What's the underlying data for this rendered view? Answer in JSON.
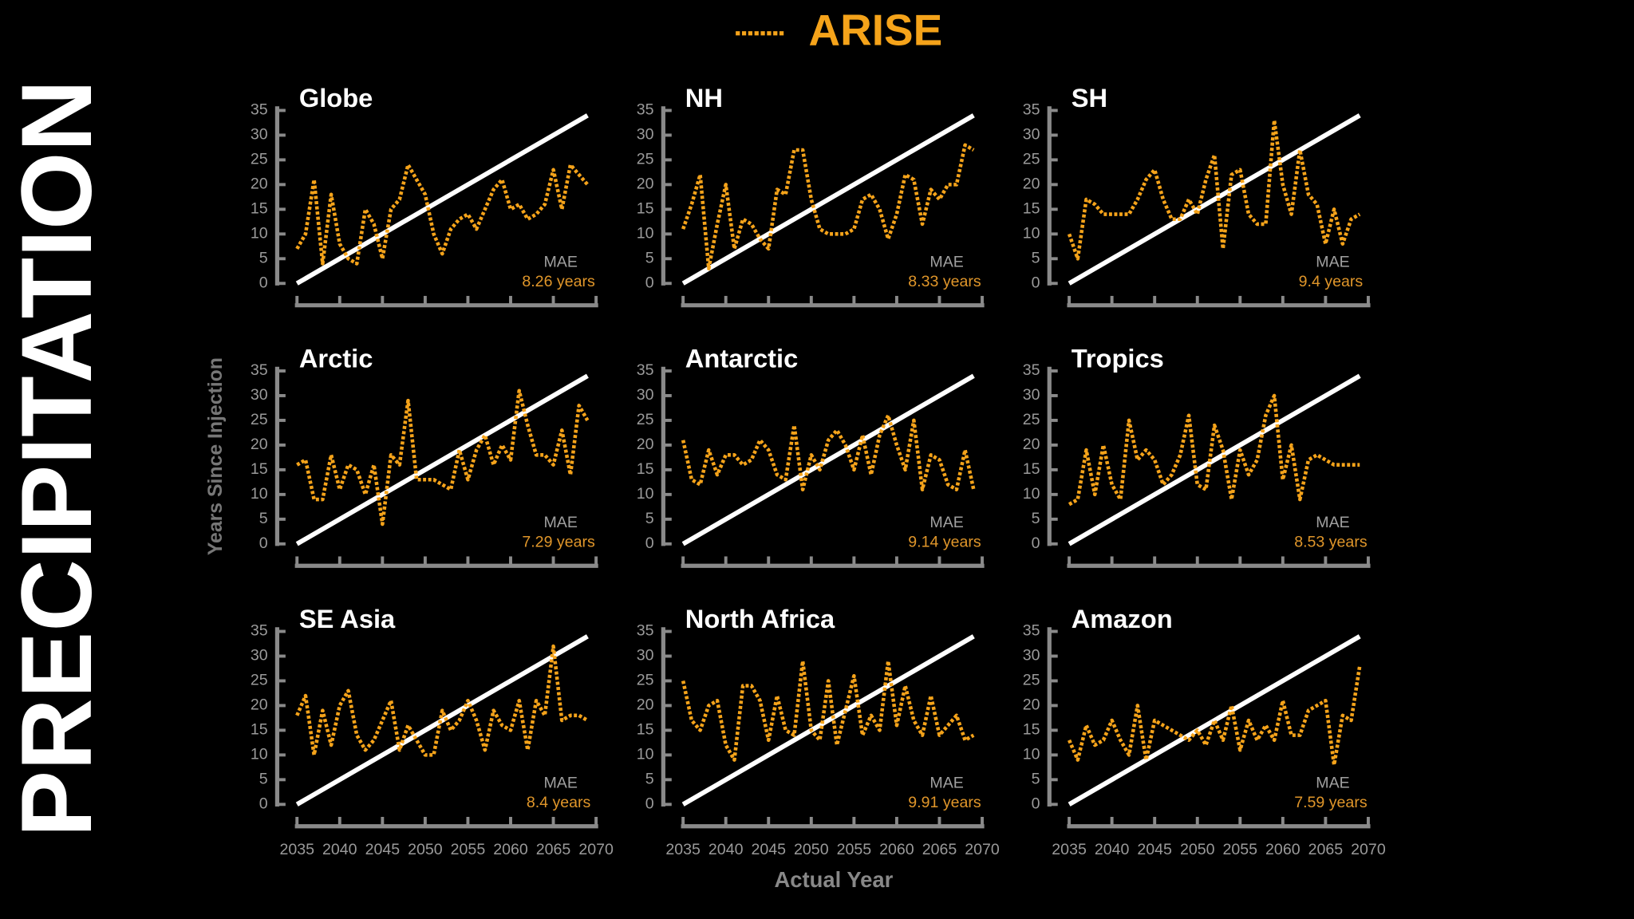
{
  "title": "PRECIPITATION",
  "xlabel": "Actual Year",
  "ylabel": "Years Since Injection",
  "chart_data": [
    {
      "type": "line",
      "title": "Globe",
      "annotation": "MAE",
      "mae": "8.26 years",
      "xlim": [
        2035,
        2070
      ],
      "ylim": [
        0,
        35
      ],
      "xticks": [
        2035,
        2040,
        2045,
        2050,
        2055,
        2060,
        2065,
        2070
      ],
      "yticks": [
        0,
        5,
        10,
        15,
        20,
        25,
        30,
        35
      ],
      "x": [
        2035,
        2036,
        2037,
        2038,
        2039,
        2040,
        2041,
        2042,
        2043,
        2044,
        2045,
        2046,
        2047,
        2048,
        2049,
        2050,
        2051,
        2052,
        2053,
        2054,
        2055,
        2056,
        2057,
        2058,
        2059,
        2060,
        2061,
        2062,
        2063,
        2064,
        2065,
        2066,
        2067,
        2068,
        2069
      ],
      "diagonal": {
        "x": [
          2035,
          2069
        ],
        "values": [
          0,
          34
        ],
        "color": "#ffffff"
      },
      "series": [
        {
          "name": "ARISE",
          "color": "#f5a31a",
          "values": [
            7,
            10,
            21,
            4,
            18,
            8,
            5,
            4,
            15,
            12,
            5,
            15,
            17,
            24,
            21,
            18,
            10,
            6,
            11,
            13,
            14,
            11,
            15,
            19,
            21,
            15,
            16,
            13,
            14,
            16,
            23,
            15,
            24,
            22,
            20
          ]
        }
      ]
    },
    {
      "type": "line",
      "title": "NH",
      "annotation": "MAE",
      "mae": "8.33 years",
      "xlim": [
        2035,
        2070
      ],
      "ylim": [
        0,
        35
      ],
      "xticks": [
        2035,
        2040,
        2045,
        2050,
        2055,
        2060,
        2065,
        2070
      ],
      "yticks": [
        0,
        5,
        10,
        15,
        20,
        25,
        30,
        35
      ],
      "x": [
        2035,
        2036,
        2037,
        2038,
        2039,
        2040,
        2041,
        2042,
        2043,
        2044,
        2045,
        2046,
        2047,
        2048,
        2049,
        2050,
        2051,
        2052,
        2053,
        2054,
        2055,
        2056,
        2057,
        2058,
        2059,
        2060,
        2061,
        2062,
        2063,
        2064,
        2065,
        2066,
        2067,
        2068,
        2069
      ],
      "diagonal": {
        "x": [
          2035,
          2069
        ],
        "values": [
          0,
          34
        ],
        "color": "#ffffff"
      },
      "series": [
        {
          "name": "ARISE",
          "color": "#f5a31a",
          "values": [
            11,
            16,
            22,
            3,
            12,
            20,
            7,
            13,
            12,
            9,
            7,
            19,
            18,
            27,
            27,
            17,
            11,
            10,
            10,
            10,
            11,
            17,
            18,
            15,
            9,
            14,
            22,
            21,
            12,
            19,
            17,
            20,
            20,
            28,
            27
          ]
        }
      ]
    },
    {
      "type": "line",
      "title": "SH",
      "annotation": "MAE",
      "mae": "9.4 years",
      "xlim": [
        2035,
        2070
      ],
      "ylim": [
        0,
        35
      ],
      "xticks": [
        2035,
        2040,
        2045,
        2050,
        2055,
        2060,
        2065,
        2070
      ],
      "yticks": [
        0,
        5,
        10,
        15,
        20,
        25,
        30,
        35
      ],
      "x": [
        2035,
        2036,
        2037,
        2038,
        2039,
        2040,
        2041,
        2042,
        2043,
        2044,
        2045,
        2046,
        2047,
        2048,
        2049,
        2050,
        2051,
        2052,
        2053,
        2054,
        2055,
        2056,
        2057,
        2058,
        2059,
        2060,
        2061,
        2062,
        2063,
        2064,
        2065,
        2066,
        2067,
        2068,
        2069
      ],
      "diagonal": {
        "x": [
          2035,
          2069
        ],
        "values": [
          0,
          34
        ],
        "color": "#ffffff"
      },
      "series": [
        {
          "name": "ARISE",
          "color": "#f5a31a",
          "values": [
            10,
            5,
            17,
            16,
            14,
            14,
            14,
            14,
            17,
            21,
            23,
            17,
            13,
            13,
            17,
            14,
            21,
            26,
            7,
            22,
            23,
            14,
            12,
            12,
            33,
            20,
            14,
            27,
            18,
            16,
            8,
            15,
            8,
            13,
            14
          ]
        }
      ]
    },
    {
      "type": "line",
      "title": "Arctic",
      "annotation": "MAE",
      "mae": "7.29 years",
      "xlim": [
        2035,
        2070
      ],
      "ylim": [
        0,
        35
      ],
      "xticks": [
        2035,
        2040,
        2045,
        2050,
        2055,
        2060,
        2065,
        2070
      ],
      "yticks": [
        0,
        5,
        10,
        15,
        20,
        25,
        30,
        35
      ],
      "x": [
        2035,
        2036,
        2037,
        2038,
        2039,
        2040,
        2041,
        2042,
        2043,
        2044,
        2045,
        2046,
        2047,
        2048,
        2049,
        2050,
        2051,
        2052,
        2053,
        2054,
        2055,
        2056,
        2057,
        2058,
        2059,
        2060,
        2061,
        2062,
        2063,
        2064,
        2065,
        2066,
        2067,
        2068,
        2069
      ],
      "diagonal": {
        "x": [
          2035,
          2069
        ],
        "values": [
          0,
          34
        ],
        "color": "#ffffff"
      },
      "series": [
        {
          "name": "ARISE",
          "color": "#f5a31a",
          "values": [
            16,
            17,
            9,
            9,
            18,
            11,
            16,
            15,
            10,
            16,
            4,
            18,
            16,
            29,
            13,
            13,
            13,
            12,
            11,
            19,
            13,
            19,
            22,
            16,
            20,
            17,
            31,
            24,
            18,
            18,
            16,
            23,
            14,
            28,
            25
          ]
        }
      ]
    },
    {
      "type": "line",
      "title": "Antarctic",
      "annotation": "MAE",
      "mae": "9.14 years",
      "xlim": [
        2035,
        2070
      ],
      "ylim": [
        0,
        35
      ],
      "xticks": [
        2035,
        2040,
        2045,
        2050,
        2055,
        2060,
        2065,
        2070
      ],
      "yticks": [
        0,
        5,
        10,
        15,
        20,
        25,
        30,
        35
      ],
      "x": [
        2035,
        2036,
        2037,
        2038,
        2039,
        2040,
        2041,
        2042,
        2043,
        2044,
        2045,
        2046,
        2047,
        2048,
        2049,
        2050,
        2051,
        2052,
        2053,
        2054,
        2055,
        2056,
        2057,
        2058,
        2059,
        2060,
        2061,
        2062,
        2063,
        2064,
        2065,
        2066,
        2067,
        2068,
        2069
      ],
      "diagonal": {
        "x": [
          2035,
          2069
        ],
        "values": [
          0,
          34
        ],
        "color": "#ffffff"
      },
      "series": [
        {
          "name": "ARISE",
          "color": "#f5a31a",
          "values": [
            21,
            13,
            12,
            19,
            14,
            18,
            18,
            16,
            17,
            21,
            19,
            14,
            13,
            24,
            11,
            18,
            15,
            21,
            23,
            20,
            15,
            22,
            14,
            22,
            26,
            20,
            15,
            25,
            11,
            18,
            17,
            12,
            11,
            19,
            11
          ]
        }
      ]
    },
    {
      "type": "line",
      "title": "Tropics",
      "annotation": "MAE",
      "mae": "8.53 years",
      "xlim": [
        2035,
        2070
      ],
      "ylim": [
        0,
        35
      ],
      "xticks": [
        2035,
        2040,
        2045,
        2050,
        2055,
        2060,
        2065,
        2070
      ],
      "yticks": [
        0,
        5,
        10,
        15,
        20,
        25,
        30,
        35
      ],
      "x": [
        2035,
        2036,
        2037,
        2038,
        2039,
        2040,
        2041,
        2042,
        2043,
        2044,
        2045,
        2046,
        2047,
        2048,
        2049,
        2050,
        2051,
        2052,
        2053,
        2054,
        2055,
        2056,
        2057,
        2058,
        2059,
        2060,
        2061,
        2062,
        2063,
        2064,
        2065,
        2066,
        2067,
        2068,
        2069
      ],
      "diagonal": {
        "x": [
          2035,
          2069
        ],
        "values": [
          0,
          34
        ],
        "color": "#ffffff"
      },
      "series": [
        {
          "name": "ARISE",
          "color": "#f5a31a",
          "values": [
            8,
            9,
            19,
            10,
            20,
            12,
            9,
            25,
            17,
            19,
            17,
            12,
            14,
            18,
            26,
            12,
            11,
            24,
            19,
            9,
            19,
            14,
            17,
            26,
            30,
            13,
            20,
            9,
            17,
            18,
            17,
            16,
            16,
            16,
            16
          ]
        }
      ]
    },
    {
      "type": "line",
      "title": "SE Asia",
      "annotation": "MAE",
      "mae": "8.4 years",
      "xlim": [
        2035,
        2070
      ],
      "ylim": [
        0,
        35
      ],
      "xticks": [
        2035,
        2040,
        2045,
        2050,
        2055,
        2060,
        2065,
        2070
      ],
      "yticks": [
        0,
        5,
        10,
        15,
        20,
        25,
        30,
        35
      ],
      "x": [
        2035,
        2036,
        2037,
        2038,
        2039,
        2040,
        2041,
        2042,
        2043,
        2044,
        2045,
        2046,
        2047,
        2048,
        2049,
        2050,
        2051,
        2052,
        2053,
        2054,
        2055,
        2056,
        2057,
        2058,
        2059,
        2060,
        2061,
        2062,
        2063,
        2064,
        2065,
        2066,
        2067,
        2068,
        2069
      ],
      "diagonal": {
        "x": [
          2035,
          2069
        ],
        "values": [
          0,
          34
        ],
        "color": "#ffffff"
      },
      "series": [
        {
          "name": "ARISE",
          "color": "#f5a31a",
          "values": [
            18,
            22,
            10,
            19,
            12,
            20,
            23,
            14,
            11,
            13,
            17,
            21,
            11,
            16,
            13,
            10,
            10,
            19,
            15,
            17,
            21,
            17,
            11,
            19,
            16,
            15,
            21,
            11,
            21,
            18,
            32,
            17,
            18,
            18,
            17
          ]
        }
      ]
    },
    {
      "type": "line",
      "title": "North Africa",
      "annotation": "MAE",
      "mae": "9.91 years",
      "xlim": [
        2035,
        2070
      ],
      "ylim": [
        0,
        35
      ],
      "xticks": [
        2035,
        2040,
        2045,
        2050,
        2055,
        2060,
        2065,
        2070
      ],
      "yticks": [
        0,
        5,
        10,
        15,
        20,
        25,
        30,
        35
      ],
      "x": [
        2035,
        2036,
        2037,
        2038,
        2039,
        2040,
        2041,
        2042,
        2043,
        2044,
        2045,
        2046,
        2047,
        2048,
        2049,
        2050,
        2051,
        2052,
        2053,
        2054,
        2055,
        2056,
        2057,
        2058,
        2059,
        2060,
        2061,
        2062,
        2063,
        2064,
        2065,
        2066,
        2067,
        2068,
        2069
      ],
      "diagonal": {
        "x": [
          2035,
          2069
        ],
        "values": [
          0,
          34
        ],
        "color": "#ffffff"
      },
      "series": [
        {
          "name": "ARISE",
          "color": "#f5a31a",
          "values": [
            25,
            17,
            15,
            20,
            21,
            12,
            9,
            24,
            24,
            21,
            13,
            22,
            15,
            14,
            29,
            15,
            13,
            25,
            12,
            19,
            26,
            14,
            18,
            15,
            29,
            16,
            24,
            17,
            14,
            22,
            14,
            16,
            18,
            13,
            14
          ]
        }
      ]
    },
    {
      "type": "line",
      "title": "Amazon",
      "annotation": "MAE",
      "mae": "7.59 years",
      "xlim": [
        2035,
        2070
      ],
      "ylim": [
        0,
        35
      ],
      "xticks": [
        2035,
        2040,
        2045,
        2050,
        2055,
        2060,
        2065,
        2070
      ],
      "yticks": [
        0,
        5,
        10,
        15,
        20,
        25,
        30,
        35
      ],
      "x": [
        2035,
        2036,
        2037,
        2038,
        2039,
        2040,
        2041,
        2042,
        2043,
        2044,
        2045,
        2046,
        2047,
        2048,
        2049,
        2050,
        2051,
        2052,
        2053,
        2054,
        2055,
        2056,
        2057,
        2058,
        2059,
        2060,
        2061,
        2062,
        2063,
        2064,
        2065,
        2066,
        2067,
        2068,
        2069
      ],
      "diagonal": {
        "x": [
          2035,
          2069
        ],
        "values": [
          0,
          34
        ],
        "color": "#ffffff"
      },
      "series": [
        {
          "name": "ARISE",
          "color": "#f5a31a",
          "values": [
            13,
            9,
            16,
            12,
            13,
            17,
            13,
            10,
            20,
            9,
            17,
            16,
            15,
            14,
            13,
            15,
            12,
            17,
            13,
            20,
            11,
            17,
            13,
            16,
            13,
            21,
            14,
            14,
            19,
            20,
            21,
            8,
            18,
            17,
            28
          ]
        }
      ]
    }
  ]
}
